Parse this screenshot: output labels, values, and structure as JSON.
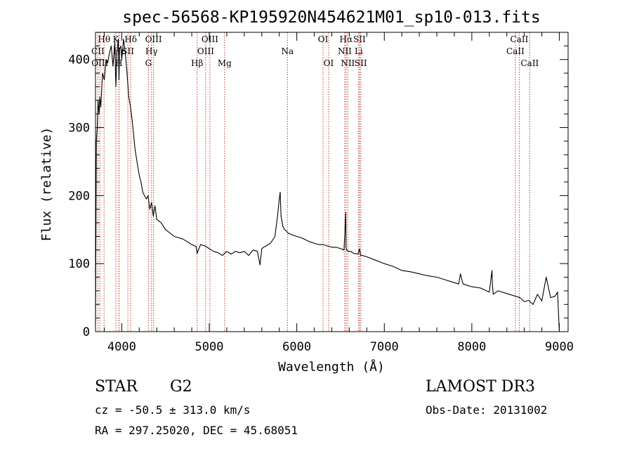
{
  "chart_data": {
    "type": "line",
    "title": "spec-56568-KP195920N454621M01_sp10-013.fits",
    "xlabel": "Wavelength (Å)",
    "ylabel": "Flux (relative)",
    "xlim": [
      3700,
      9100
    ],
    "ylim": [
      0,
      440
    ],
    "xticks": [
      4000,
      5000,
      6000,
      7000,
      8000,
      9000
    ],
    "yticks": [
      0,
      100,
      200,
      300,
      400
    ],
    "line_color": "#000000",
    "marker_color": "#c0392b",
    "series": [
      {
        "name": "flux",
        "x": [
          3700,
          3710,
          3720,
          3730,
          3740,
          3750,
          3760,
          3780,
          3800,
          3820,
          3840,
          3860,
          3880,
          3900,
          3920,
          3933,
          3945,
          3960,
          3968,
          3975,
          3990,
          4000,
          4020,
          4040,
          4060,
          4080,
          4100,
          4120,
          4150,
          4180,
          4200,
          4220,
          4240,
          4260,
          4280,
          4300,
          4320,
          4340,
          4360,
          4380,
          4400,
          4450,
          4500,
          4550,
          4600,
          4650,
          4700,
          4750,
          4800,
          4850,
          4861,
          4900,
          4950,
          5000,
          5050,
          5100,
          5150,
          5200,
          5250,
          5300,
          5350,
          5400,
          5450,
          5500,
          5550,
          5580,
          5600,
          5620,
          5650,
          5700,
          5750,
          5780,
          5800,
          5810,
          5820,
          5840,
          5860,
          5880,
          5900,
          5950,
          6000,
          6050,
          6100,
          6150,
          6200,
          6250,
          6300,
          6350,
          6400,
          6450,
          6500,
          6540,
          6560,
          6563,
          6570,
          6590,
          6620,
          6650,
          6700,
          6716,
          6730,
          6750,
          6800,
          6900,
          7000,
          7100,
          7200,
          7300,
          7400,
          7500,
          7600,
          7700,
          7800,
          7850,
          7870,
          7900,
          7950,
          8000,
          8100,
          8200,
          8230,
          8237,
          8245,
          8300,
          8400,
          8500,
          8550,
          8600,
          8650,
          8700,
          8750,
          8800,
          8850,
          8900,
          8950,
          8980,
          9000
        ],
        "y": [
          10,
          280,
          300,
          340,
          320,
          345,
          330,
          380,
          370,
          400,
          395,
          410,
          420,
          390,
          425,
          360,
          410,
          430,
          370,
          415,
          420,
          400,
          430,
          410,
          380,
          345,
          330,
          310,
          270,
          245,
          230,
          220,
          205,
          200,
          195,
          200,
          180,
          190,
          170,
          185,
          165,
          160,
          150,
          145,
          140,
          138,
          136,
          132,
          128,
          125,
          115,
          128,
          126,
          122,
          118,
          116,
          112,
          118,
          114,
          118,
          116,
          118,
          112,
          120,
          118,
          98,
          122,
          124,
          126,
          130,
          140,
          170,
          195,
          205,
          170,
          155,
          150,
          148,
          145,
          142,
          140,
          138,
          135,
          132,
          130,
          128,
          128,
          126,
          124,
          124,
          122,
          120,
          175,
          125,
          120,
          118,
          118,
          115,
          114,
          122,
          112,
          112,
          110,
          105,
          100,
          96,
          90,
          88,
          85,
          82,
          80,
          76,
          72,
          70,
          85,
          70,
          68,
          66,
          64,
          58,
          90,
          66,
          55,
          60,
          56,
          52,
          50,
          44,
          46,
          40,
          55,
          45,
          80,
          50,
          52,
          58,
          0
        ]
      }
    ],
    "line_markers": [
      {
        "label": "Hθ",
        "wavelength": 3798,
        "row": 1
      },
      {
        "label": "CII",
        "wavelength": 3727,
        "row": 2
      },
      {
        "label": "OIII",
        "wavelength": 3750,
        "row": 3
      },
      {
        "label": "K",
        "wavelength": 3933,
        "row": 1
      },
      {
        "label": "Hε",
        "wavelength": 3970,
        "row": 2
      },
      {
        "label": "SII",
        "wavelength": 4070,
        "row": 2
      },
      {
        "label": "Hδ",
        "wavelength": 4102,
        "row": 1
      },
      {
        "label": "H",
        "wavelength": 3968,
        "row": 3
      },
      {
        "label": "OIII",
        "wavelength": 4363,
        "row": 1
      },
      {
        "label": "Hγ",
        "wavelength": 4340,
        "row": 2
      },
      {
        "label": "G",
        "wavelength": 4305,
        "row": 3
      },
      {
        "label": "Hβ",
        "wavelength": 4861,
        "row": 3
      },
      {
        "label": "OIII",
        "wavelength": 5007,
        "row": 1
      },
      {
        "label": "OIII",
        "wavelength": 4959,
        "row": 2
      },
      {
        "label": "Mg",
        "wavelength": 5175,
        "row": 3
      },
      {
        "label": "Na",
        "wavelength": 5893,
        "row": 2
      },
      {
        "label": "OI",
        "wavelength": 6300,
        "row": 1
      },
      {
        "label": "OI",
        "wavelength": 6364,
        "row": 3
      },
      {
        "label": "Hα",
        "wavelength": 6563,
        "row": 1
      },
      {
        "label": "SII",
        "wavelength": 6716,
        "row": 1
      },
      {
        "label": "NII",
        "wavelength": 6548,
        "row": 2
      },
      {
        "label": "Li",
        "wavelength": 6708,
        "row": 2
      },
      {
        "label": "NII",
        "wavelength": 6583,
        "row": 3
      },
      {
        "label": "SII",
        "wavelength": 6731,
        "row": 3
      },
      {
        "label": "CaII",
        "wavelength": 8542,
        "row": 1
      },
      {
        "label": "CaII",
        "wavelength": 8498,
        "row": 2
      },
      {
        "label": "CaII",
        "wavelength": 8662,
        "row": 3
      }
    ]
  },
  "info": {
    "class": "STAR",
    "subclass": "G2",
    "survey": "LAMOST DR3",
    "redshift": "cz = -50.5 ± 313.0 km/s",
    "obs_date": "Obs-Date: 20131002",
    "coords": "RA = 297.25020, DEC =  45.68051"
  }
}
